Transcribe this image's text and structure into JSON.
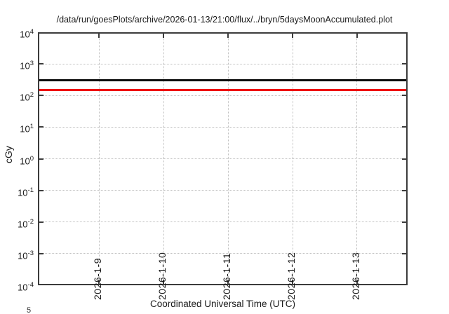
{
  "title": "/data/run/goesPlots/archive/2026-01-13/21:00/flux/../bryn/5daysMoonAccumulated.plot",
  "axes": {
    "x_label": "Coordinated Universal Time (UTC)",
    "y_label": "cGy"
  },
  "corner_fragment": "5",
  "colors": {
    "background": "#ffffff",
    "axis": "#3c3c3c",
    "grid": "#bfbfbf",
    "text": "#1a1a1a",
    "black_line": "#0d0d0d",
    "red_line": "#ee1111"
  },
  "chart_data": {
    "type": "line",
    "title": "/data/run/goesPlots/archive/2026-01-13/21:00/flux/../bryn/5daysMoonAccumulated.plot",
    "xlabel": "Coordinated Universal Time (UTC)",
    "ylabel": "cGy",
    "y_scale": "log",
    "ylim": [
      0.0001,
      10000
    ],
    "y_tick_exponents": [
      4,
      3,
      2,
      1,
      0,
      -1,
      -2,
      -3,
      -4
    ],
    "x_tick_labels": [
      "2026-1-9",
      "2026-1-10",
      "2026-1-11",
      "2026-1-12",
      "2026-1-13"
    ],
    "grid": "dotted",
    "series": [
      {
        "name": "black horizontal limit line",
        "type": "hline",
        "value": 300,
        "unit": "cGy",
        "color": "#0d0d0d",
        "thickness_px": 3
      },
      {
        "name": "red horizontal limit line",
        "type": "hline",
        "value": 150,
        "unit": "cGy",
        "color": "#ee1111",
        "thickness_px": 3
      }
    ]
  }
}
